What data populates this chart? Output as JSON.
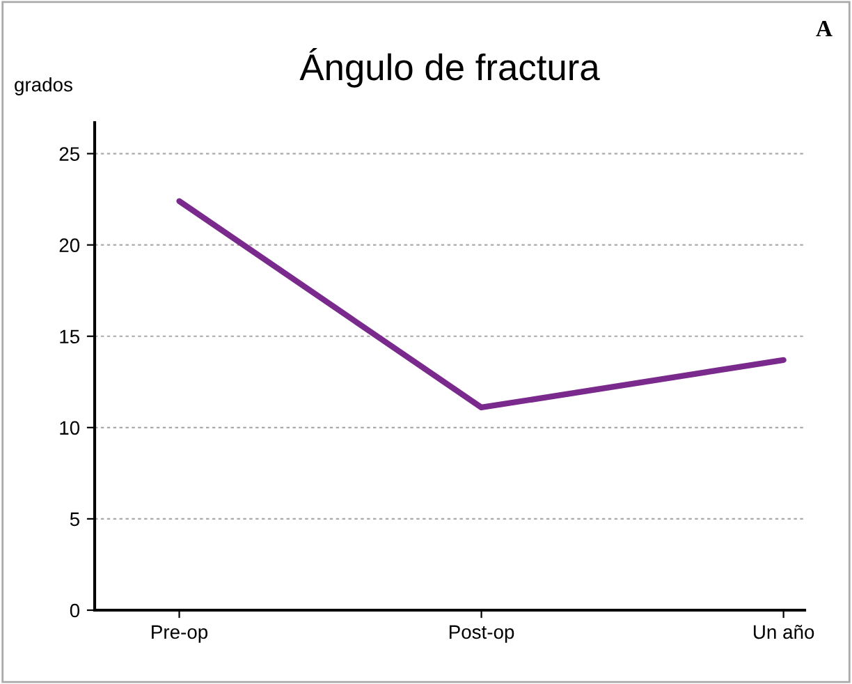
{
  "chart_data": {
    "type": "line",
    "title": "Ángulo de fractura",
    "ylabel": "grados",
    "categories": [
      "Pre-op",
      "Post-op",
      "Un año"
    ],
    "series": [
      {
        "color": "#7a2a8c",
        "values": [
          22.4,
          11.1,
          13.7
        ]
      }
    ],
    "ylim": [
      0,
      26.7
    ],
    "yticks": [
      0,
      5,
      10,
      15,
      20,
      25
    ],
    "grid": "y",
    "marker": "none",
    "line_style": "solid",
    "annotations": [
      "A"
    ]
  }
}
